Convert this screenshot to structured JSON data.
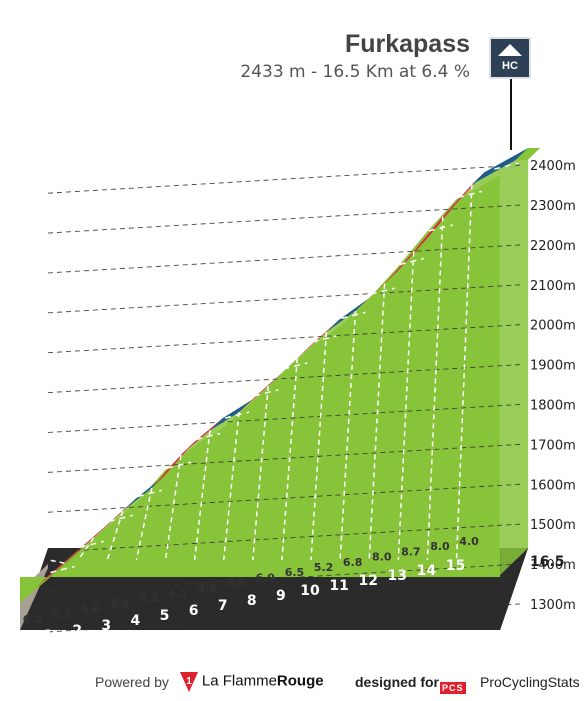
{
  "climb": {
    "name": "Furkapass",
    "summary": "2433 m - 16.5 Km at 6.4 %",
    "category": "HC"
  },
  "footer": {
    "powered_by": "Powered by",
    "brand_number": "1",
    "brand_a": "La Flamme",
    "brand_b": "Rouge",
    "designed_for": "designed for",
    "pcs_logo": "PCS",
    "site": "ProCyclingStats"
  },
  "colors": {
    "grade_green": "#88c43a",
    "grade_red": "#e11f3f",
    "grade_blue": "#1f5c8b",
    "base_dark": "#2b2b2b",
    "side_beige": "#a79f93",
    "badge_bg": "#2d4055",
    "brand_red": "#e0202d"
  },
  "chart_data": {
    "type": "area",
    "title": "Furkapass",
    "subtitle": "2433 m - 16.5 Km at 6.4 %",
    "distance_km": 16.5,
    "end_label": "16.5",
    "km_markers": [
      "1",
      "2",
      "3",
      "4",
      "5",
      "6",
      "7",
      "8",
      "9",
      "10",
      "11",
      "12",
      "13",
      "14",
      "15"
    ],
    "segment_gradients": [
      "6.2",
      "6.3",
      "6.6",
      "5.8",
      "8.2",
      "6.1",
      "4.5",
      "6.5",
      "6.9",
      "6.5",
      "5.2",
      "6.8",
      "8.0",
      "8.7",
      "8.0",
      "4.0"
    ],
    "segment_values": [
      6.2,
      6.3,
      6.6,
      5.8,
      8.2,
      6.1,
      4.5,
      6.5,
      6.9,
      6.5,
      5.2,
      6.8,
      8.0,
      8.7,
      8.0,
      4.0
    ],
    "segment_km": [
      1,
      1,
      1,
      1,
      1,
      1,
      1,
      1,
      1,
      1,
      1,
      1,
      1,
      1,
      1,
      1.5
    ],
    "segment_colors": [
      "red",
      "red",
      "red",
      "blue",
      "red",
      "red",
      "blue",
      "red",
      "red",
      "red",
      "blue",
      "red",
      "red",
      "red",
      "red",
      "blue"
    ],
    "start_elevation_m": 1370,
    "summit_elevation_m": 2433,
    "y_axis_labels": [
      "2400m",
      "2300m",
      "2200m",
      "2100m",
      "2000m",
      "1900m",
      "1800m",
      "1700m",
      "1600m",
      "1500m",
      "1400m",
      "1300m"
    ],
    "y_axis_values": [
      2400,
      2300,
      2200,
      2100,
      2000,
      1900,
      1800,
      1700,
      1600,
      1500,
      1400,
      1300
    ],
    "ylim": [
      1260,
      2460
    ],
    "grid": true
  }
}
